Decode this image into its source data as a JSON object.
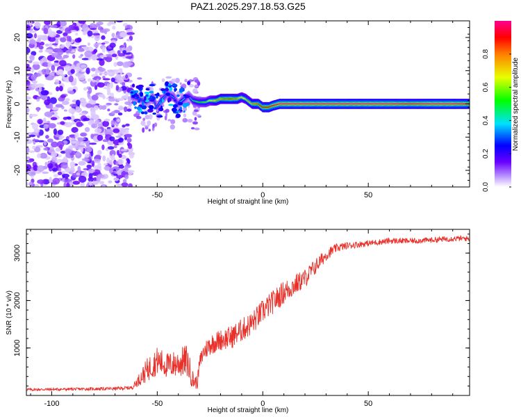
{
  "figure_title": "PAZ1.2025.297.18.53.G25",
  "chart_data": [
    {
      "type": "heatmap",
      "title": "PAZ1.2025.297.18.53.G25",
      "xlabel": "Height of straight line (km)",
      "ylabel": "Frequency (Hz)",
      "xlim": [
        -112,
        98
      ],
      "ylim": [
        -25,
        25
      ],
      "xticks": [
        -100,
        -50,
        0,
        50
      ],
      "xtick_labels": [
        "-100",
        "-50",
        "0",
        "50"
      ],
      "yticks": [
        -20,
        -10,
        0,
        10,
        20
      ],
      "ytick_labels": [
        "-20",
        "-10",
        "0",
        "10",
        "20"
      ],
      "noise_region_x": [
        -112,
        -62
      ],
      "ridge": {
        "x": [
          -62,
          -58,
          -55,
          -52,
          -50,
          -48,
          -45,
          -42,
          -40,
          -38,
          -35,
          -33,
          -30,
          -27,
          -25,
          -22,
          -20,
          -15,
          -12,
          -10,
          -8,
          -5,
          -2,
          0,
          3,
          5,
          8,
          12,
          20,
          30,
          40,
          50,
          60,
          70,
          80,
          90,
          98
        ],
        "frequency": [
          2.5,
          1.5,
          0.5,
          2.0,
          -1.0,
          1.0,
          3.0,
          2.0,
          0.0,
          1.0,
          2.5,
          1.0,
          0.5,
          0.5,
          1.0,
          1.0,
          1.5,
          1.5,
          1.5,
          2.0,
          1.5,
          0.0,
          0.0,
          -1.0,
          -1.0,
          -0.5,
          0.0,
          0.0,
          0.0,
          0.0,
          0.0,
          0.0,
          0.0,
          0.0,
          0.0,
          0.0,
          0.0
        ],
        "amplitude": [
          0.35,
          0.3,
          0.25,
          0.35,
          0.3,
          0.4,
          0.3,
          0.35,
          0.3,
          0.4,
          0.3,
          0.45,
          0.5,
          0.55,
          0.6,
          0.75,
          0.8,
          0.85,
          0.8,
          0.65,
          0.7,
          0.75,
          0.85,
          0.9,
          0.9,
          0.95,
          1.0,
          1.0,
          1.0,
          1.0,
          1.0,
          1.0,
          1.0,
          0.95,
          1.0,
          1.0,
          0.95
        ]
      },
      "colorbar": {
        "label": "Normalized spectral amplitude",
        "range": [
          0,
          1
        ],
        "ticks": [
          0.0,
          0.2,
          0.4,
          0.6,
          0.8
        ],
        "tick_labels": [
          "0.0",
          "0.2",
          "0.4",
          "0.6",
          "0.8"
        ]
      }
    },
    {
      "type": "line",
      "xlabel": "Height of straight line (km)",
      "ylabel": "SNR (10 * v/v)",
      "xlim": [
        -112,
        98
      ],
      "ylim": [
        0,
        3500
      ],
      "xticks": [
        -100,
        -50,
        0,
        50
      ],
      "xtick_labels": [
        "-100",
        "-50",
        "0",
        "50"
      ],
      "yticks": [
        1000,
        2000,
        3000
      ],
      "ytick_labels": [
        "1000",
        "2000",
        "3000"
      ],
      "color": "#e8302a",
      "series": [
        {
          "name": "SNR",
          "x": [
            -112,
            -90,
            -70,
            -62,
            -58,
            -55,
            -50,
            -45,
            -40,
            -36,
            -33,
            -31,
            -30,
            -28,
            -25,
            -20,
            -15,
            -10,
            -5,
            0,
            5,
            10,
            15,
            20,
            25,
            30,
            35,
            40,
            50,
            60,
            70,
            80,
            90,
            98
          ],
          "mean": [
            120,
            130,
            140,
            160,
            350,
            500,
            700,
            600,
            650,
            700,
            300,
            250,
            650,
            900,
            1050,
            1150,
            1200,
            1350,
            1500,
            1750,
            1950,
            2150,
            2300,
            2450,
            2700,
            2950,
            3100,
            3150,
            3200,
            3250,
            3250,
            3270,
            3300,
            3300
          ],
          "amplitude": [
            60,
            60,
            70,
            80,
            300,
            500,
            600,
            550,
            600,
            700,
            400,
            250,
            350,
            400,
            450,
            450,
            500,
            500,
            500,
            500,
            500,
            500,
            450,
            400,
            350,
            250,
            180,
            150,
            130,
            130,
            120,
            120,
            120,
            120
          ]
        }
      ]
    }
  ],
  "colors": {
    "snr_line": "#e8302a",
    "noise_purple": "#7a2ee8",
    "frame": "#000000"
  }
}
